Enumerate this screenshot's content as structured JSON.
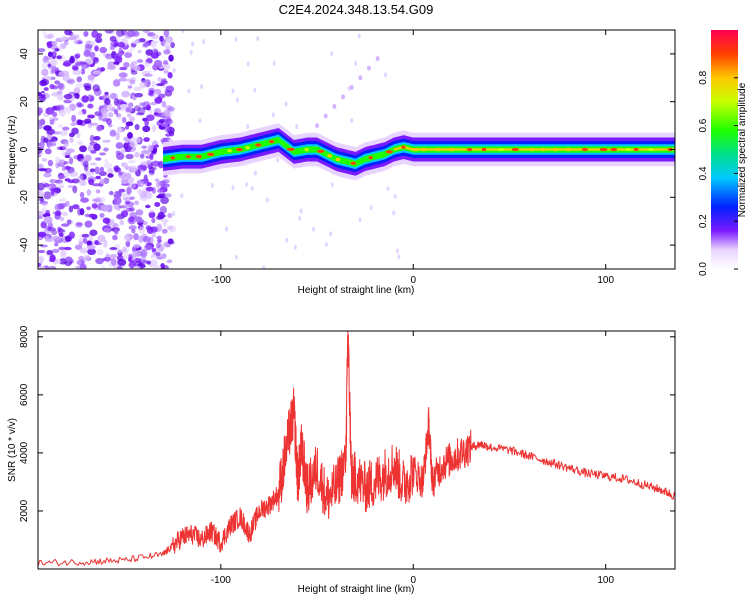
{
  "chart_data": [
    {
      "type": "heatmap",
      "title": "C2E4.2024.348.13.54.G09",
      "xlabel": "Height of straight line (km)",
      "ylabel": "Frequency (Hz)",
      "xlim": [
        -195,
        136
      ],
      "ylim": [
        -50,
        50
      ],
      "x_ticks": [
        -100,
        0,
        100
      ],
      "x_tick_labels": [
        "-100",
        "0",
        "100"
      ],
      "y_ticks": [
        -40,
        -20,
        0,
        20,
        40
      ],
      "y_tick_labels": [
        "-40",
        "-20",
        "0",
        "20",
        "40"
      ],
      "grid": false,
      "colorbar": {
        "label": "Normalized spectral amplitude",
        "range": [
          0,
          1
        ],
        "ticks": [
          0.0,
          0.2,
          0.4,
          0.6,
          0.8
        ],
        "tick_labels": [
          "0.0",
          "0.2",
          "0.4",
          "0.6",
          "0.8"
        ]
      },
      "ridge": {
        "x": [
          -130,
          -120,
          -110,
          -100,
          -90,
          -80,
          -70,
          -62,
          -55,
          -50,
          -45,
          -40,
          -35,
          -30,
          -25,
          -20,
          -15,
          -10,
          -5,
          0,
          10,
          20,
          40,
          60,
          80,
          100,
          120,
          136
        ],
        "y": [
          -4,
          -3,
          -3,
          -1,
          0,
          2,
          4,
          -1,
          0,
          0,
          -2,
          -4,
          -5,
          -6,
          -4,
          -3,
          -2,
          0,
          1,
          0,
          0,
          0,
          0,
          0,
          0,
          0,
          0,
          0
        ]
      },
      "noise_region_x": [
        -195,
        -125
      ]
    },
    {
      "type": "line",
      "title": "",
      "xlabel": "Height of straight line (km)",
      "ylabel": "SNR (10 * v/v)",
      "xlim": [
        -195,
        136
      ],
      "ylim": [
        0,
        8200
      ],
      "x_ticks": [
        -100,
        0,
        100
      ],
      "x_tick_labels": [
        "-100",
        "0",
        "100"
      ],
      "y_ticks": [
        2000,
        4000,
        6000,
        8000
      ],
      "y_tick_labels": [
        "2000",
        "4000",
        "6000",
        "8000"
      ],
      "grid": false,
      "series": [
        {
          "color": "#ee3333",
          "x": [
            -195,
            -170,
            -150,
            -130,
            -125,
            -120,
            -115,
            -110,
            -105,
            -100,
            -95,
            -90,
            -85,
            -80,
            -75,
            -70,
            -65,
            -62,
            -60,
            -58,
            -55,
            -50,
            -45,
            -40,
            -35,
            -34,
            -32,
            -30,
            -25,
            -20,
            -15,
            -10,
            -5,
            0,
            5,
            8,
            10,
            15,
            20,
            25,
            30,
            35,
            40,
            50,
            60,
            70,
            80,
            90,
            100,
            110,
            120,
            130,
            136
          ],
          "y": [
            200,
            250,
            300,
            500,
            800,
            1100,
            1200,
            1000,
            1300,
            900,
            1500,
            1800,
            1200,
            2000,
            2200,
            2600,
            4500,
            5400,
            3000,
            4200,
            2700,
            3500,
            2400,
            2800,
            3800,
            8200,
            3000,
            3200,
            2800,
            3000,
            3300,
            3600,
            2900,
            3400,
            3000,
            5000,
            3000,
            3600,
            3800,
            4000,
            4200,
            4300,
            4200,
            4100,
            3900,
            3700,
            3500,
            3300,
            3200,
            3100,
            2900,
            2700,
            2500
          ]
        }
      ]
    }
  ]
}
